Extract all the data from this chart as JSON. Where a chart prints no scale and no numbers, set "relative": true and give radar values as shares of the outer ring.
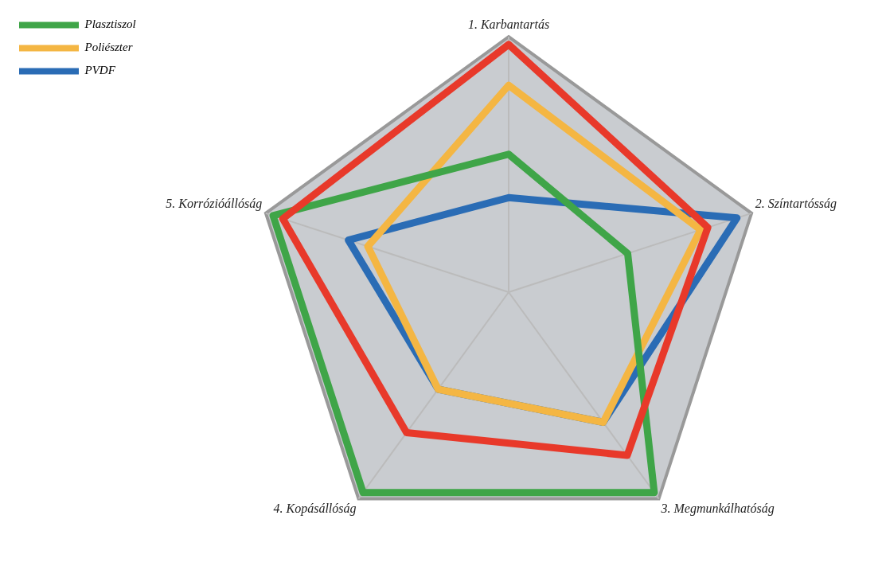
{
  "chart_data": {
    "type": "radar",
    "relative": true,
    "legend": "top left",
    "categories": [
      "1. Karbantartás",
      "2. Színtartósság",
      "3. Megmunkálhatóság",
      "4. Kopásállóság",
      "5. Korrózióállóság"
    ],
    "series": [
      {
        "color": "#e8392a",
        "values": [
          0.97,
          0.82,
          0.79,
          0.68,
          0.93
        ]
      },
      {
        "name": "Plasztiszol",
        "color": "#3fa548",
        "values": [
          0.54,
          0.49,
          0.97,
          0.97,
          0.97
        ]
      },
      {
        "name": "Poliészter",
        "color": "#f4b643",
        "values": [
          0.81,
          0.79,
          0.63,
          0.47,
          0.58
        ]
      },
      {
        "name": "PVDF",
        "color": "#2a6cb5",
        "values": [
          0.37,
          0.94,
          0.63,
          0.47,
          0.66
        ]
      }
    ]
  }
}
